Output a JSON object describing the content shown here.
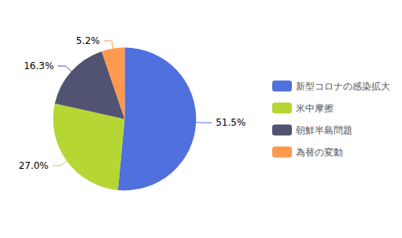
{
  "chart_data": {
    "type": "pie",
    "categories": [
      "新型コロナの感染拡大",
      "米中摩擦",
      "朝鮮半島問題",
      "為替の変動"
    ],
    "values": [
      51.5,
      27.0,
      16.3,
      5.2
    ],
    "value_labels": [
      "51.5%",
      "27.0%",
      "16.3%",
      "5.2%"
    ],
    "data_labels": true,
    "legend": "right"
  }
}
